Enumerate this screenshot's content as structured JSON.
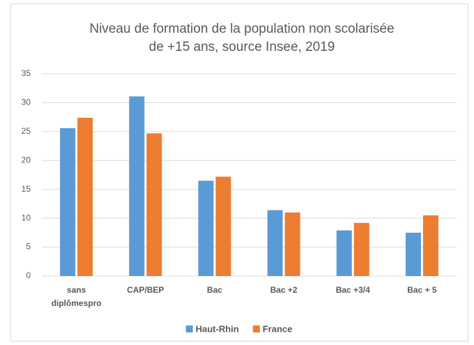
{
  "chart_data": {
    "type": "bar",
    "title": "Niveau de formation de la population non scolarisée de +15 ans, source Insee, 2019",
    "categories": [
      "sans diplômespro",
      "CAP/BEP",
      "Bac",
      "Bac +2",
      "Bac +3/4",
      "Bac + 5"
    ],
    "series": [
      {
        "name": "Haut-Rhin",
        "color": "#5b9bd5",
        "values": [
          25.6,
          31.1,
          16.5,
          11.4,
          7.9,
          7.5
        ]
      },
      {
        "name": "France",
        "color": "#ed7d31",
        "values": [
          27.4,
          24.7,
          17.2,
          11.0,
          9.2,
          10.5
        ]
      }
    ],
    "ylim": [
      0,
      35
    ],
    "yticks": [
      0,
      5,
      10,
      15,
      20,
      25,
      30,
      35
    ],
    "grid": true,
    "legend": "bottom"
  }
}
